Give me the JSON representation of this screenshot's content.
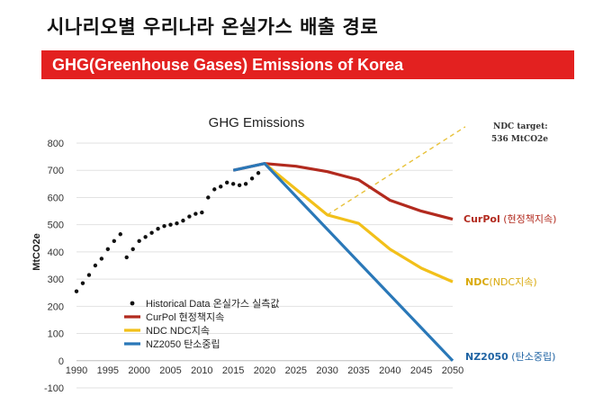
{
  "page": {
    "title": "시나리오별 우리나라 온실가스 배출 경로",
    "banner": "GHG(Greenhouse Gases) Emissions of Korea"
  },
  "colors": {
    "banner_bg": "#e32120",
    "historical": "#111111",
    "curpol": "#b22a1e",
    "ndc": "#f2c01a",
    "nz2050": "#2a78b8",
    "target_line": "#e8c23a",
    "curpol_label": "#b22a1e",
    "ndc_label": "#d9a90c",
    "nz_label": "#1f63a3"
  },
  "chart_data": {
    "type": "line",
    "title": "GHG Emissions",
    "ylabel": "MtCO2e",
    "xlim": [
      1990,
      2050
    ],
    "ylim": [
      -100,
      800
    ],
    "x_ticks": [
      1990,
      1995,
      2000,
      2005,
      2010,
      2015,
      2020,
      2025,
      2030,
      2035,
      2040,
      2045,
      2050
    ],
    "y_ticks": [
      -100,
      0,
      100,
      200,
      300,
      400,
      500,
      600,
      700,
      800
    ],
    "grid": "horizontal",
    "legend_position": "bottom-left",
    "series": [
      {
        "name": "Historical Data 온실가스 실측값",
        "style": "dots",
        "points": [
          [
            1990,
            255
          ],
          [
            1991,
            285
          ],
          [
            1992,
            315
          ],
          [
            1993,
            350
          ],
          [
            1994,
            375
          ],
          [
            1995,
            410
          ],
          [
            1996,
            440
          ],
          [
            1997,
            465
          ],
          [
            1998,
            380
          ],
          [
            1999,
            410
          ],
          [
            2000,
            440
          ],
          [
            2001,
            455
          ],
          [
            2002,
            470
          ],
          [
            2003,
            485
          ],
          [
            2004,
            495
          ],
          [
            2005,
            500
          ],
          [
            2006,
            505
          ],
          [
            2007,
            515
          ],
          [
            2008,
            530
          ],
          [
            2009,
            540
          ],
          [
            2010,
            545
          ],
          [
            2011,
            600
          ],
          [
            2012,
            630
          ],
          [
            2013,
            640
          ],
          [
            2014,
            655
          ],
          [
            2015,
            650
          ],
          [
            2016,
            645
          ],
          [
            2017,
            650
          ],
          [
            2018,
            670
          ],
          [
            2019,
            690
          ]
        ]
      },
      {
        "name": "CurPol 현정책지속",
        "style": "line",
        "points": [
          [
            2015,
            700
          ],
          [
            2020,
            725
          ],
          [
            2025,
            715
          ],
          [
            2030,
            695
          ],
          [
            2035,
            665
          ],
          [
            2040,
            590
          ],
          [
            2045,
            550
          ],
          [
            2050,
            520
          ]
        ]
      },
      {
        "name": "NDC NDC지속",
        "style": "line",
        "points": [
          [
            2020,
            725
          ],
          [
            2030,
            536
          ],
          [
            2035,
            505
          ],
          [
            2040,
            410
          ],
          [
            2045,
            340
          ],
          [
            2050,
            290
          ]
        ]
      },
      {
        "name": "NZ2050 탄소중립",
        "style": "line",
        "points": [
          [
            2015,
            700
          ],
          [
            2020,
            725
          ],
          [
            2050,
            0
          ]
        ]
      }
    ],
    "annotations": {
      "ndc_target_line": {
        "from": [
          2030,
          536
        ],
        "to": [
          2052,
          860
        ]
      },
      "ndc_target_label_line1": "NDC target:",
      "ndc_target_label_line2": "536 MtCO2e",
      "end_labels": {
        "curpol_bold": "CurPol",
        "curpol_rest": " (현정책지속)",
        "ndc_bold": "NDC",
        "ndc_rest": "(NDC지속)",
        "nz_bold": "NZ2050",
        "nz_rest": " (탄소중립)"
      }
    }
  }
}
